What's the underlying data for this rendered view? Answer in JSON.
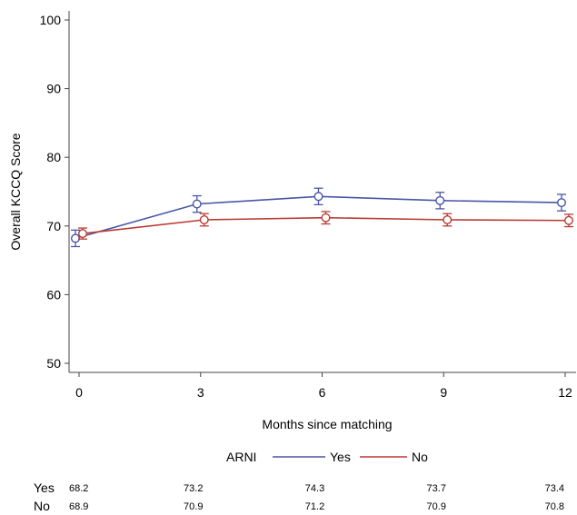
{
  "chart_data": {
    "type": "line",
    "xlabel": "Months since matching",
    "ylabel": "Overall KCCQ Score",
    "xlim": [
      0,
      12
    ],
    "ylim": [
      50,
      100
    ],
    "x_ticks": [
      "0",
      "3",
      "6",
      "9",
      "12"
    ],
    "y_ticks": [
      "50",
      "60",
      "70",
      "80",
      "90",
      "100"
    ],
    "x": [
      0,
      3,
      6,
      9,
      12
    ],
    "grid": false,
    "legend": {
      "title": "ARNI",
      "placement": "bottom",
      "entries": [
        "Yes",
        "No"
      ]
    },
    "series": [
      {
        "name": "Yes",
        "color": "#4a56a6",
        "marker": "circle",
        "values": [
          68.2,
          73.2,
          74.3,
          73.7,
          73.4
        ],
        "ci_low": [
          67.0,
          72.0,
          73.1,
          72.5,
          72.2
        ],
        "ci_high": [
          69.4,
          74.4,
          75.5,
          74.9,
          74.6
        ]
      },
      {
        "name": "No",
        "color": "#b93a32",
        "marker": "circle",
        "values": [
          68.9,
          70.9,
          71.2,
          70.9,
          70.8
        ],
        "ci_low": [
          68.1,
          70.0,
          70.3,
          70.0,
          69.9
        ],
        "ci_high": [
          69.7,
          71.8,
          72.1,
          71.8,
          71.7
        ]
      }
    ],
    "value_table": [
      {
        "label": "Yes",
        "values": [
          "68.2",
          "73.2",
          "74.3",
          "73.7",
          "73.4"
        ]
      },
      {
        "label": "No",
        "values": [
          "68.9",
          "70.9",
          "71.2",
          "70.9",
          "70.8"
        ]
      }
    ]
  }
}
